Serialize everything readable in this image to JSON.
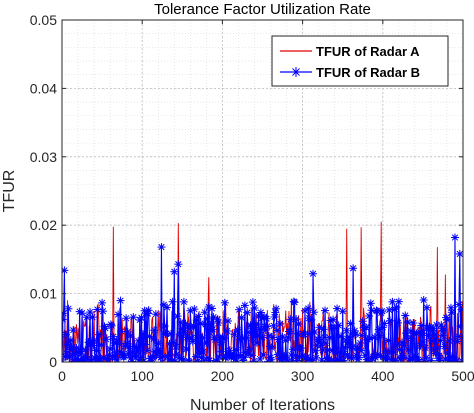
{
  "chart_data": {
    "type": "line",
    "title": "Tolerance Factor Utilization Rate",
    "xlabel": "Number of Iterations",
    "ylabel": "TFUR",
    "xlim": [
      0,
      500
    ],
    "ylim": [
      0,
      0.05
    ],
    "xticks": [
      0,
      100,
      200,
      300,
      400,
      500
    ],
    "yticks": [
      0,
      0.01,
      0.02,
      0.03,
      0.04,
      0.05
    ],
    "xtick_labels": [
      "0",
      "100",
      "200",
      "300",
      "400",
      "500"
    ],
    "ytick_labels": [
      "0",
      "0.01",
      "0.02",
      "0.03",
      "0.04",
      "0.05"
    ],
    "grid": true,
    "minor_grid": true,
    "legend_position": "top-right",
    "series": [
      {
        "name": "TFUR of Radar A",
        "color": "#e00000",
        "marker": "none",
        "peaks": [
          {
            "x": 64,
            "y": 0.0198
          },
          {
            "x": 145,
            "y": 0.0203
          },
          {
            "x": 355,
            "y": 0.0195
          },
          {
            "x": 373,
            "y": 0.0197
          },
          {
            "x": 398,
            "y": 0.0205
          },
          {
            "x": 468,
            "y": 0.0168
          },
          {
            "x": 183,
            "y": 0.0124
          },
          {
            "x": 478,
            "y": 0.0128
          }
        ],
        "typical_range": [
          0,
          0.008
        ]
      },
      {
        "name": "TFUR of Radar B",
        "color": "#0000ff",
        "marker": "asterisk",
        "peaks": [
          {
            "x": 3,
            "y": 0.0134
          },
          {
            "x": 124,
            "y": 0.0168
          },
          {
            "x": 140,
            "y": 0.0132
          },
          {
            "x": 145,
            "y": 0.0143
          },
          {
            "x": 313,
            "y": 0.0129
          },
          {
            "x": 363,
            "y": 0.0137
          },
          {
            "x": 490,
            "y": 0.0182
          },
          {
            "x": 496,
            "y": 0.0158
          }
        ],
        "typical_range": [
          0,
          0.008
        ]
      }
    ]
  }
}
